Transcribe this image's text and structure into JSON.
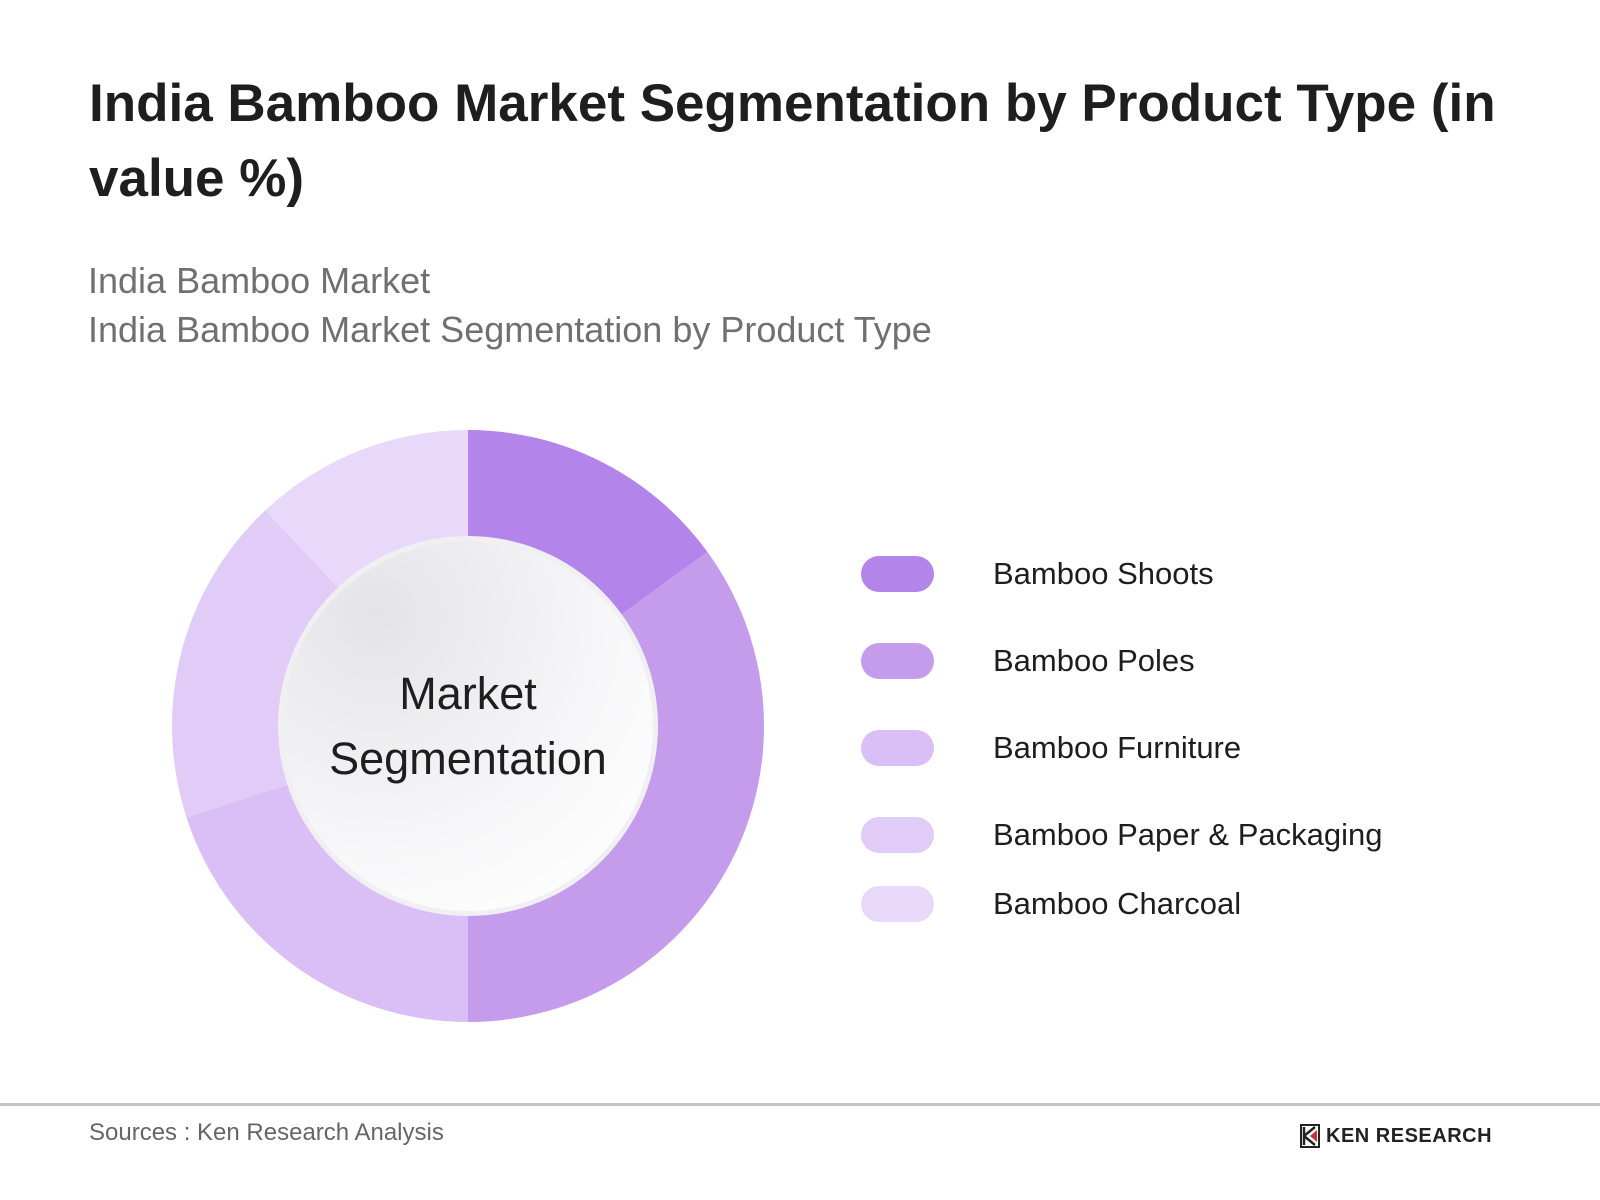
{
  "header": {
    "title": "India Bamboo Market Segmentation by Product Type (in value %)",
    "subtitle_line1": "India Bamboo Market",
    "subtitle_line2": "India Bamboo Market Segmentation by Product Type"
  },
  "center_label": {
    "line1": "Market",
    "line2": "Segmentation"
  },
  "legend": [
    {
      "label": "Bamboo Shoots",
      "color": "#b384e9"
    },
    {
      "label": "Bamboo Poles",
      "color": "#c59cec"
    },
    {
      "label": "Bamboo Furniture",
      "color": "#d9bff5"
    },
    {
      "label": "Bamboo Paper & Packaging",
      "color": "#e0ccf6"
    },
    {
      "label": "Bamboo Charcoal",
      "color": "#e8d9fa"
    }
  ],
  "footer": {
    "source": "Sources : Ken Research Analysis",
    "logo_text": "KEN RESEARCH"
  },
  "chart_data": {
    "type": "pie",
    "subtype": "donut",
    "title": "India Bamboo Market Segmentation by Product Type (in value %)",
    "subtitle": "India Bamboo Market Segmentation by Product Type",
    "categories": [
      "Bamboo Shoots",
      "Bamboo Poles",
      "Bamboo Furniture",
      "Bamboo Paper & Packaging",
      "Bamboo Charcoal"
    ],
    "values": [
      15,
      35,
      20,
      18,
      12
    ],
    "colors": [
      "#b384e9",
      "#c59cec",
      "#d9bff5",
      "#e0ccf6",
      "#e8d9fa"
    ],
    "center_text": "Market Segmentation",
    "legend_position": "right",
    "data_labels": false,
    "start_angle": "12 o'clock, clockwise",
    "note": "Values estimated from slice angles; no numeric labels shown"
  }
}
